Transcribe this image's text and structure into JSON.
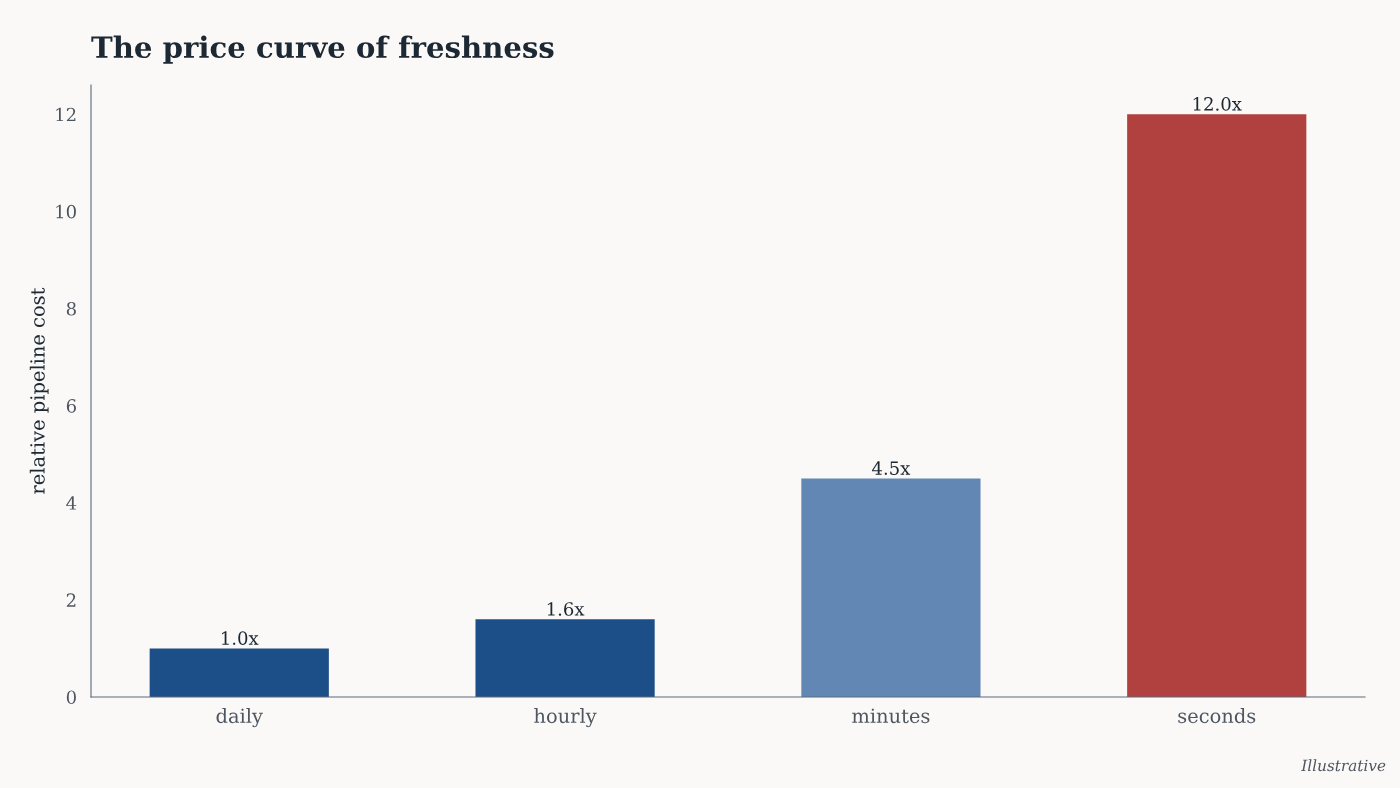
{
  "chart_data": {
    "type": "bar",
    "title": "The price curve of freshness",
    "ylabel": "relative pipeline cost",
    "categories": [
      "daily",
      "hourly",
      "minutes",
      "seconds"
    ],
    "values": [
      1.0,
      1.6,
      4.5,
      12.0
    ],
    "colors": [
      "#1c4e87",
      "#1c4e87",
      "#6287b5",
      "#b0413e"
    ],
    "value_labels": [
      "1.0x",
      "1.6x",
      "4.5x",
      "12.0x"
    ],
    "ylim": [
      0,
      12.6
    ],
    "yticks": [
      0,
      2,
      4,
      6,
      8,
      10,
      12
    ],
    "grid": false,
    "annotations": [
      "Illustrative"
    ]
  }
}
